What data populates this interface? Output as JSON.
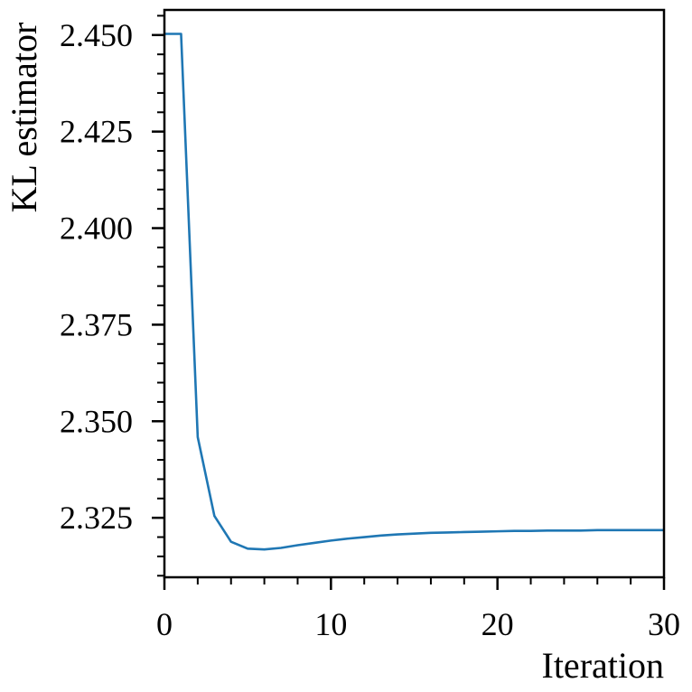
{
  "chart_data": {
    "type": "line",
    "title": "",
    "xlabel": "Iteration",
    "ylabel": "KL estimator",
    "xlim": [
      0,
      30
    ],
    "ylim": [
      2.3096,
      2.4565
    ],
    "x_ticks": [
      0,
      10,
      20,
      30
    ],
    "x_tick_labels": [
      "0",
      "10",
      "20",
      "30"
    ],
    "y_ticks": [
      2.325,
      2.35,
      2.375,
      2.4,
      2.425,
      2.45
    ],
    "y_tick_labels": [
      "2.325",
      "2.350",
      "2.375",
      "2.400",
      "2.425",
      "2.450"
    ],
    "grid": false,
    "series": [
      {
        "color": "#1f77b4",
        "x": [
          0,
          1,
          2,
          3,
          4,
          5,
          6,
          7,
          8,
          9,
          10,
          11,
          12,
          13,
          14,
          15,
          16,
          17,
          18,
          19,
          20,
          21,
          22,
          23,
          24,
          25,
          26,
          27,
          28,
          29,
          30
        ],
        "y": [
          2.4503,
          2.4503,
          2.3459,
          2.3255,
          2.3188,
          2.317,
          2.3168,
          2.3172,
          2.3179,
          2.3185,
          2.3191,
          2.3196,
          2.32,
          2.3204,
          2.3207,
          2.3209,
          2.3211,
          2.3212,
          2.3213,
          2.3214,
          2.3215,
          2.3216,
          2.3216,
          2.3217,
          2.3217,
          2.3217,
          2.3218,
          2.3218,
          2.3218,
          2.3218,
          2.3218
        ]
      }
    ]
  }
}
